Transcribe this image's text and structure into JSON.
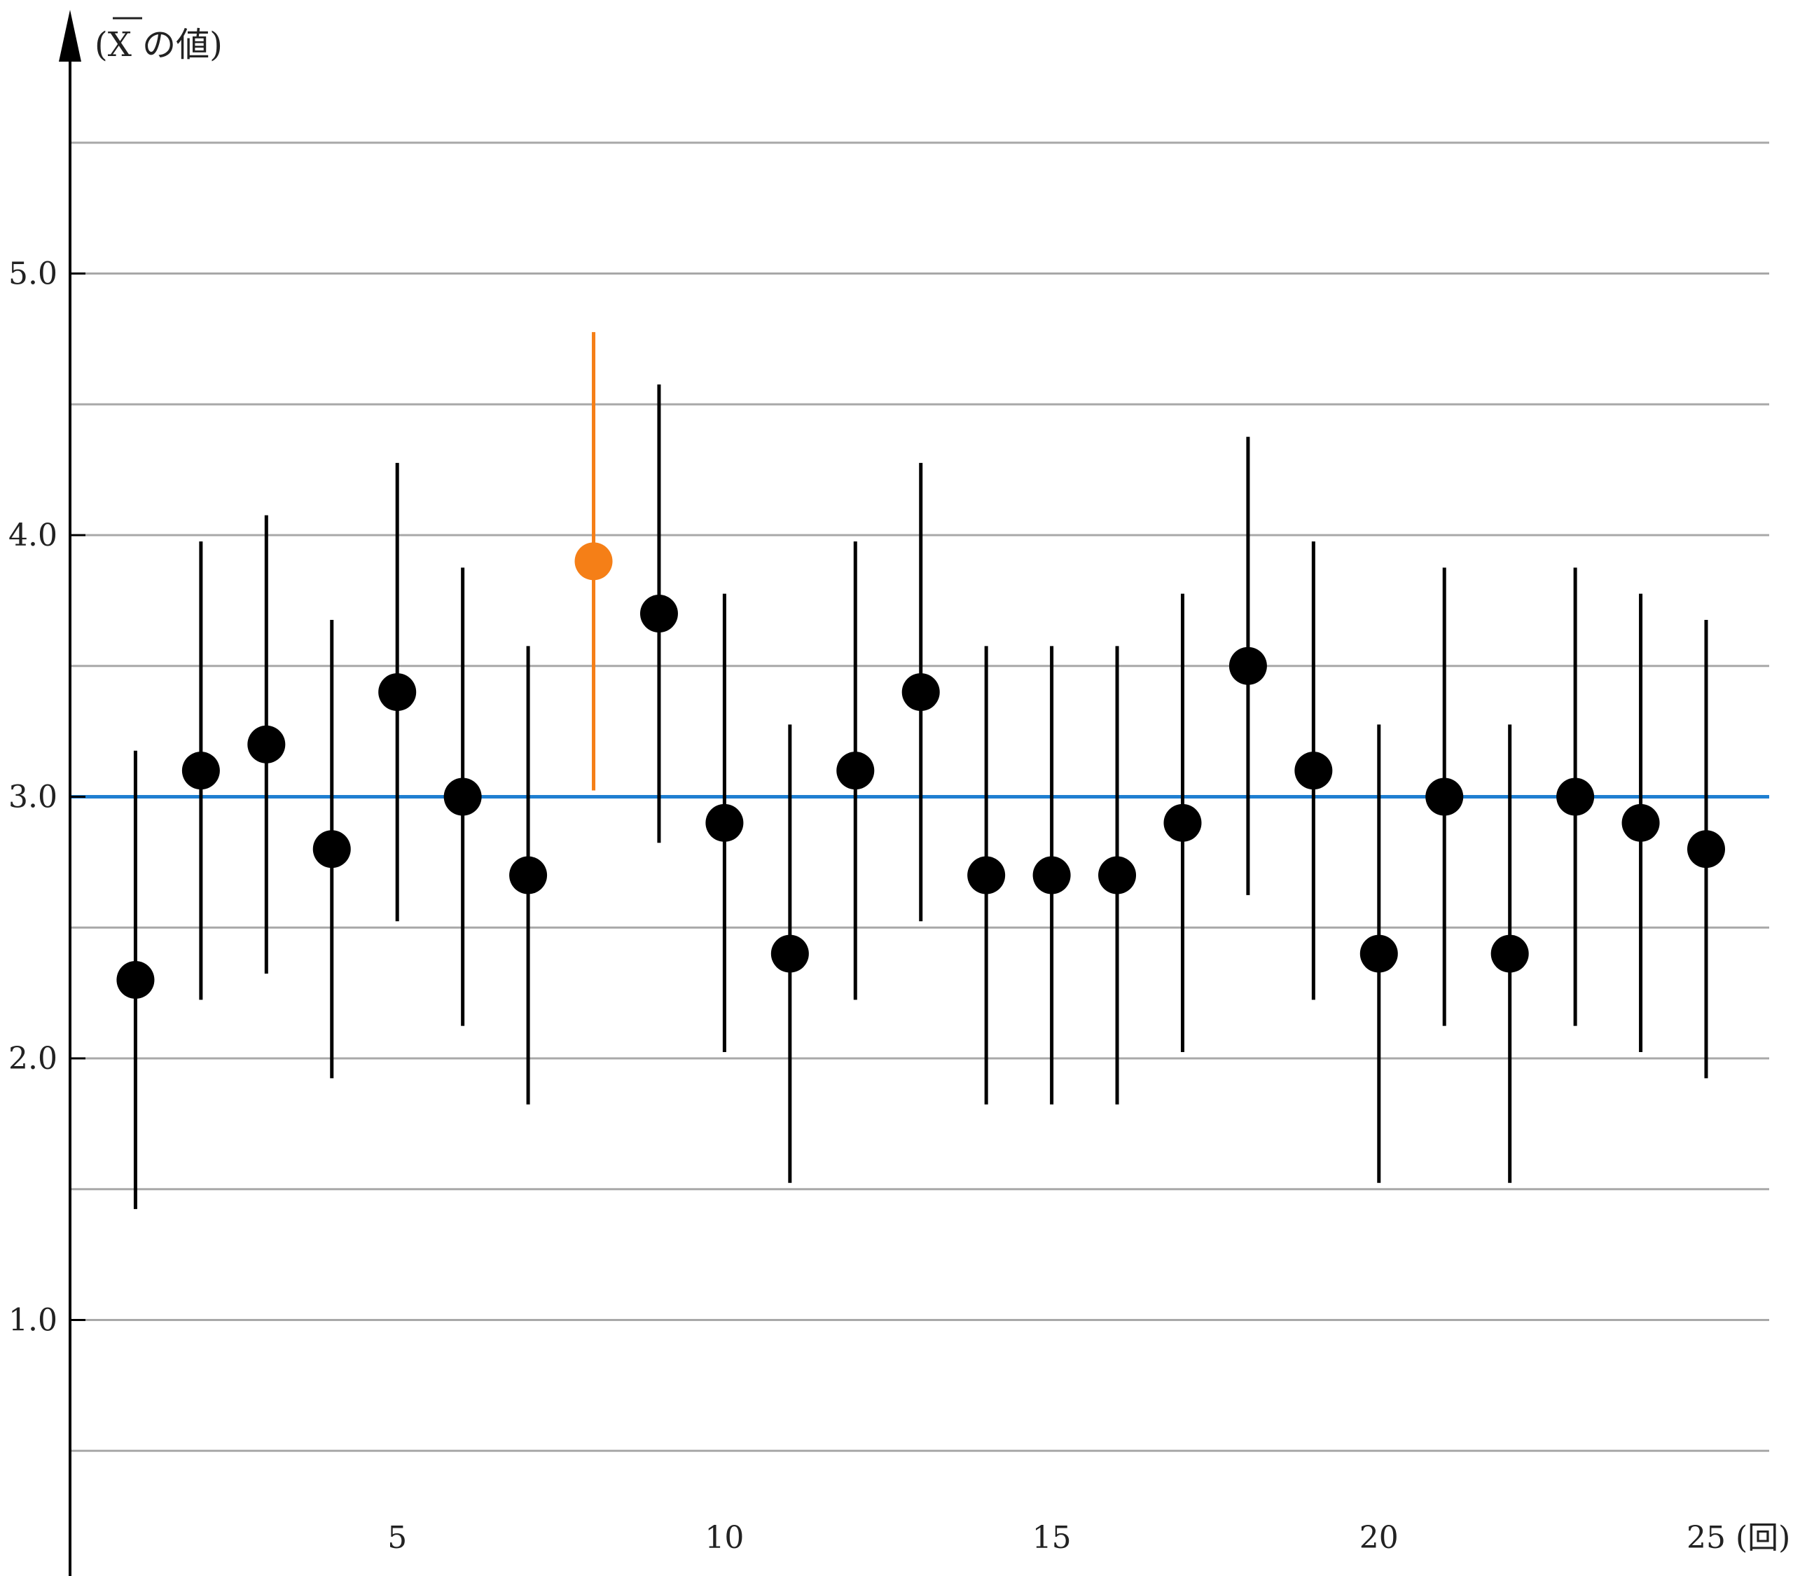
{
  "chart_data": {
    "type": "scatter",
    "title": "",
    "ylabel": "(X の値)",
    "xlabel_unit": "(回)",
    "xlim": [
      0,
      26
    ],
    "ylim": [
      0,
      5.6
    ],
    "x_ticks": [
      5,
      10,
      15,
      20,
      25
    ],
    "y_ticks": [
      {
        "value": 1.0,
        "label": "1.0"
      },
      {
        "value": 2.0,
        "label": "2.0"
      },
      {
        "value": 3.0,
        "label": "3.0"
      },
      {
        "value": 4.0,
        "label": "4.0"
      },
      {
        "value": 5.0,
        "label": "5.0"
      }
    ],
    "gridlines_y": [
      0.5,
      1.0,
      1.5,
      2.0,
      2.5,
      3.0,
      3.5,
      4.0,
      4.5,
      5.0,
      5.5
    ],
    "reference_line": {
      "y": 3.0,
      "color": "#1f7fd1"
    },
    "errorbar_half_width": 0.876,
    "points": [
      {
        "x": 1,
        "y": 2.3
      },
      {
        "x": 2,
        "y": 3.1
      },
      {
        "x": 3,
        "y": 3.2
      },
      {
        "x": 4,
        "y": 2.8
      },
      {
        "x": 5,
        "y": 3.4
      },
      {
        "x": 6,
        "y": 3.0
      },
      {
        "x": 7,
        "y": 2.7
      },
      {
        "x": 8,
        "y": 3.9,
        "highlight": true
      },
      {
        "x": 9,
        "y": 3.7
      },
      {
        "x": 10,
        "y": 2.9
      },
      {
        "x": 11,
        "y": 2.4
      },
      {
        "x": 12,
        "y": 3.1
      },
      {
        "x": 13,
        "y": 3.4
      },
      {
        "x": 14,
        "y": 2.7
      },
      {
        "x": 15,
        "y": 2.7
      },
      {
        "x": 16,
        "y": 2.7
      },
      {
        "x": 17,
        "y": 2.9
      },
      {
        "x": 18,
        "y": 3.5
      },
      {
        "x": 19,
        "y": 3.1
      },
      {
        "x": 20,
        "y": 2.4
      },
      {
        "x": 21,
        "y": 3.0
      },
      {
        "x": 22,
        "y": 2.4
      },
      {
        "x": 23,
        "y": 3.0
      },
      {
        "x": 24,
        "y": 2.9
      },
      {
        "x": 25,
        "y": 2.8
      }
    ],
    "colors": {
      "point": "#000000",
      "highlight": "#f57f17",
      "grid": "#a8a8a8",
      "axis": "#000000"
    }
  }
}
